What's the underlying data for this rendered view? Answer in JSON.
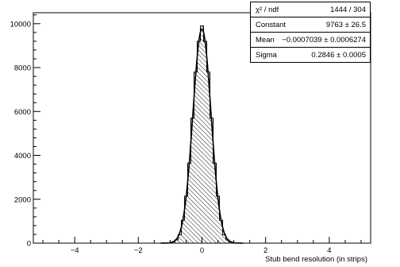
{
  "chart_data": {
    "type": "histogram",
    "title": "",
    "xlabel": "Stub bend resolution (in strips)",
    "ylabel": "",
    "xlim": [
      -5.3,
      5.3
    ],
    "ylim": [
      0,
      10500
    ],
    "x_ticks": [
      "−4",
      "−2",
      "0",
      "2",
      "4"
    ],
    "x_tick_values": [
      -4,
      -2,
      0,
      2,
      4
    ],
    "y_ticks": [
      "0",
      "2000",
      "4000",
      "6000",
      "8000",
      "10000"
    ],
    "y_tick_values": [
      0,
      2000,
      4000,
      6000,
      8000,
      10000
    ],
    "grid": false,
    "fill": "hatched",
    "series": [
      {
        "x": [
          -1.0,
          -0.9,
          -0.8,
          -0.7,
          -0.6,
          -0.5,
          -0.4,
          -0.3,
          -0.2,
          -0.1,
          0.0,
          0.1,
          0.2,
          0.3,
          0.4,
          0.5,
          0.6,
          0.7,
          0.8,
          0.9,
          1.0
        ],
        "values": [
          20,
          60,
          150,
          380,
          1040,
          2140,
          3650,
          5700,
          7800,
          9200,
          9900,
          9200,
          7800,
          5700,
          3650,
          2140,
          1040,
          380,
          150,
          60,
          20
        ]
      }
    ],
    "fit": {
      "function": "gaus",
      "constant": 9763,
      "mean": -0.0007039,
      "sigma": 0.2846
    },
    "stats_box": [
      {
        "label": "χ² / ndf",
        "value": "1444 / 304"
      },
      {
        "label": "Constant",
        "value": "9763 ± 26.5"
      },
      {
        "label": "Mean",
        "value": "−0.0007039 ± 0.0006274"
      },
      {
        "label": "Sigma",
        "value": "0.2846 ± 0.0005"
      }
    ]
  }
}
